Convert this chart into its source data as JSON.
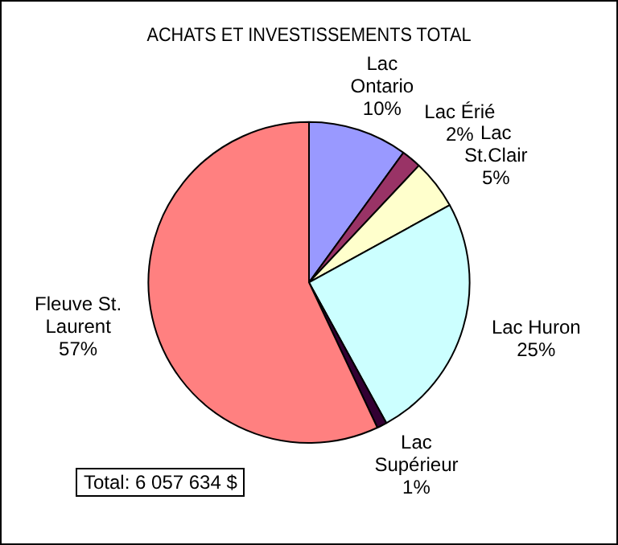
{
  "chart_data": {
    "type": "pie",
    "title": "ACHATS ET INVESTISSEMENTS TOTAL",
    "categories": [
      "Lac Ontario",
      "Lac Érié",
      "Lac St.Clair",
      "Lac Huron",
      "Lac Supérieur",
      "Fleuve St. Laurent"
    ],
    "values": [
      10,
      2,
      5,
      25,
      1,
      57
    ],
    "value_labels": [
      "10%",
      "2%",
      "5%",
      "25%",
      "1%",
      "57%"
    ],
    "colors": [
      "#9999ff",
      "#993366",
      "#ffffcc",
      "#ccffff",
      "#330033",
      "#ff8080"
    ],
    "annotations": [
      "Total: 6 057 634 $"
    ],
    "legend": false
  }
}
